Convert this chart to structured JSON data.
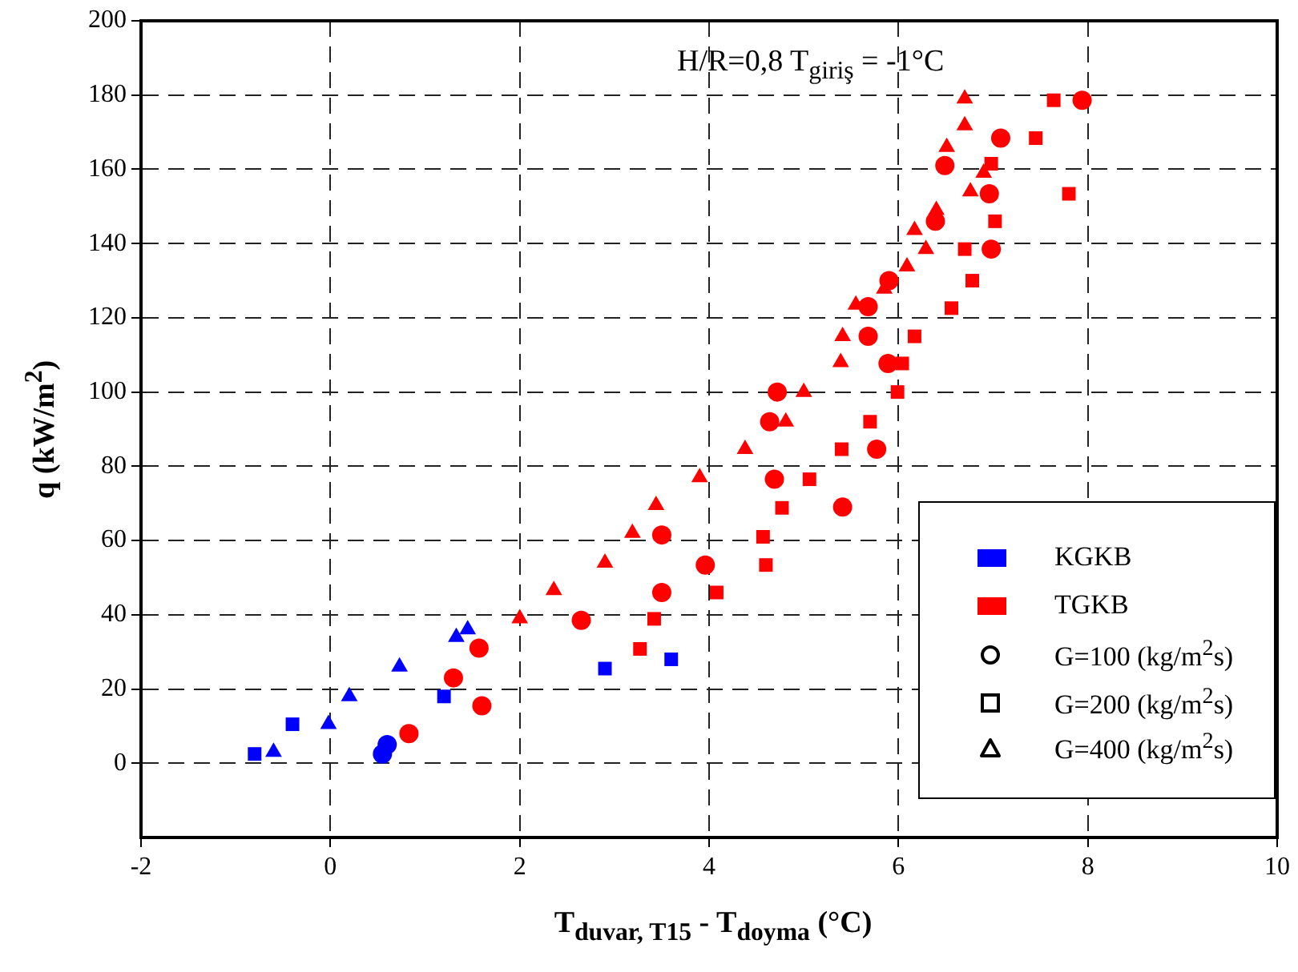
{
  "chart_data": {
    "type": "scatter",
    "title": "H/R=0,8 T$_{giriş}$ = -1°C",
    "xlabel": "T$_{duvar, T15}$ - T$_{doyma}$ (°C)",
    "ylabel": "q (kW/m$^{2}$)",
    "xlim": [
      -2,
      10
    ],
    "xticks": [
      -2,
      0,
      2,
      4,
      6,
      8,
      10
    ],
    "ylim": [
      -20,
      200
    ],
    "yticks": [
      0,
      20,
      40,
      60,
      80,
      100,
      120,
      140,
      160,
      180,
      200
    ],
    "grid": true,
    "annotations": [
      "KGKB",
      "TGKB",
      "G=100 (kg/m$^{2}$s)",
      "G=200 (kg/m$^{2}$s)",
      "G=400 (kg/m$^{2}$s)"
    ],
    "series": [
      {
        "color": "#0000ff",
        "marker": "circle",
        "x": [
          0.55,
          0.6
        ],
        "values": [
          2.5,
          5
        ]
      },
      {
        "color": "#0000ff",
        "marker": "square",
        "x": [
          -0.8,
          -0.4,
          1.2,
          2.9,
          3.6
        ],
        "values": [
          2.5,
          10.5,
          18,
          25.5,
          28
        ]
      },
      {
        "color": "#0000ff",
        "marker": "triangle",
        "x": [
          -0.6,
          -0.02,
          0.2,
          0.73,
          1.33,
          1.45
        ],
        "values": [
          3,
          10.5,
          18,
          26,
          34,
          36
        ]
      },
      {
        "color": "#ff0000",
        "marker": "circle",
        "x": [
          0.83,
          1.6,
          1.3,
          1.57,
          2.65,
          3.5,
          3.96,
          3.5,
          5.41,
          4.69,
          5.77,
          4.64,
          4.72,
          5.89,
          5.68,
          5.68,
          5.9,
          6.98,
          6.39,
          6.96,
          6.49,
          7.08,
          7.94
        ],
        "values": [
          8,
          15.5,
          23,
          31,
          38.5,
          46,
          53.4,
          61.5,
          69,
          76.5,
          84.6,
          92,
          100,
          107.7,
          115,
          123,
          130,
          138.5,
          146,
          153.4,
          161,
          168.4,
          178.6
        ]
      },
      {
        "color": "#ff0000",
        "marker": "square",
        "x": [
          3.27,
          3.42,
          4.08,
          4.6,
          4.57,
          4.77,
          5.06,
          5.4,
          5.7,
          5.99,
          6.04,
          6.17,
          6.56,
          6.78,
          6.7,
          7.02,
          7.8,
          6.98,
          7.45,
          7.64
        ],
        "values": [
          30.8,
          38.9,
          46,
          53.4,
          61,
          68.8,
          76.5,
          84.6,
          92,
          100,
          107.7,
          115,
          122.6,
          130,
          138.5,
          146,
          153.4,
          161.5,
          168.4,
          178.6
        ]
      },
      {
        "color": "#ff0000",
        "marker": "triangle",
        "x": [
          2,
          2.36,
          2.9,
          3.19,
          3.44,
          3.9,
          4.38,
          4.81,
          5,
          5.39,
          5.41,
          5.55,
          5.85,
          6.09,
          6.29,
          6.17,
          6.4,
          6.76,
          6.9,
          6.51,
          6.7,
          6.7
        ],
        "values": [
          39,
          46.6,
          54,
          62,
          69.5,
          77,
          84.6,
          92,
          100,
          108,
          115,
          123.5,
          127.8,
          133.8,
          138.5,
          143.6,
          149,
          154,
          159,
          166,
          171.8,
          179
        ]
      }
    ]
  }
}
